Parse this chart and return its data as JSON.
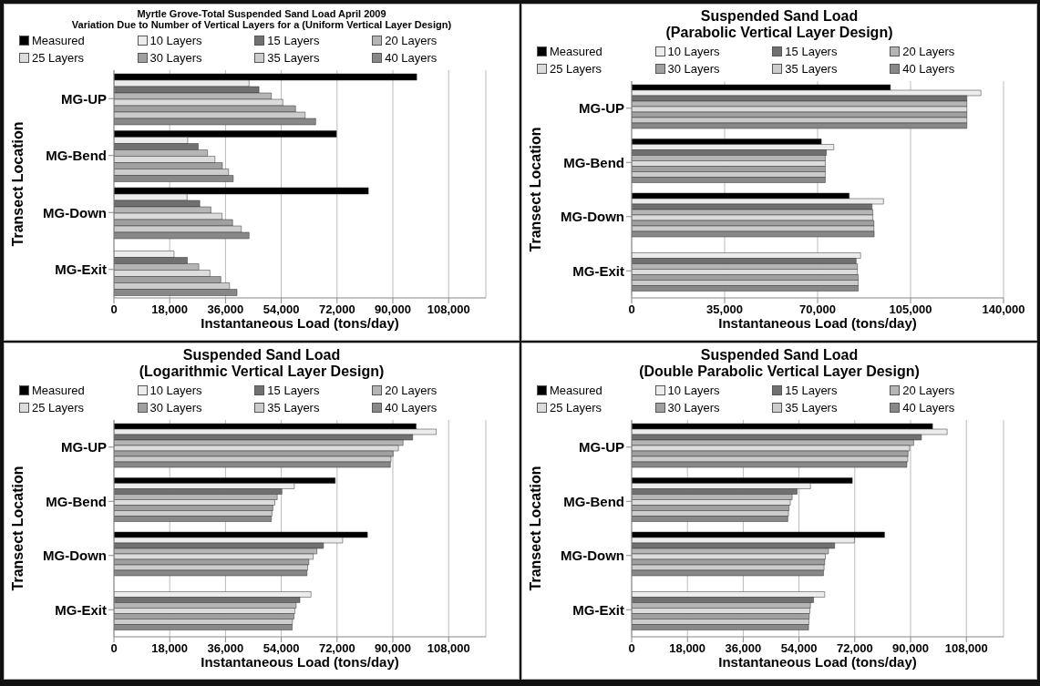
{
  "chart_data": [
    {
      "type": "bar",
      "orientation": "horizontal",
      "title": "Myrtle Grove-Total Suspended Sand Load April 2009",
      "subtitle": "Variation Due to Number of Vertical Layers for a (Uniform Vertical Layer Design)",
      "xlabel": "Instantaneous Load (tons/day)",
      "ylabel": "Transect Location",
      "categories": [
        "MG-UP",
        "MG-Bend",
        "MG-Down",
        "MG-Exit"
      ],
      "xlim": [
        0,
        120000
      ],
      "xticks": [
        {
          "value": 0,
          "label": "0"
        },
        {
          "value": 18000,
          "label": "18,000"
        },
        {
          "value": 36000,
          "label": "36,000"
        },
        {
          "value": 54000,
          "label": "54,000"
        },
        {
          "value": 72000,
          "label": "72,000"
        },
        {
          "value": 90000,
          "label": "90,000"
        },
        {
          "value": 108000,
          "label": "108,000"
        }
      ],
      "grid": "x",
      "legend": "top",
      "series": [
        {
          "name": "Measured",
          "color": "#000000",
          "values": [
            97700,
            71800,
            82100,
            null
          ]
        },
        {
          "name": "10 Layers",
          "color": "#ececec",
          "values": [
            43600,
            23800,
            23600,
            19400
          ]
        },
        {
          "name": "15 Layers",
          "color": "#707070",
          "values": [
            46800,
            27200,
            27700,
            23700
          ]
        },
        {
          "name": "20 Layers",
          "color": "#b5b5b5",
          "values": [
            50800,
            30200,
            31300,
            27400
          ]
        },
        {
          "name": "25 Layers",
          "color": "#dcdcdc",
          "values": [
            54500,
            32600,
            34900,
            31000
          ]
        },
        {
          "name": "30 Layers",
          "color": "#a0a0a0",
          "values": [
            58600,
            35000,
            38300,
            34500
          ]
        },
        {
          "name": "35 Layers",
          "color": "#cccccc",
          "values": [
            61700,
            37000,
            41100,
            37300
          ]
        },
        {
          "name": "40 Layers",
          "color": "#888888",
          "values": [
            65100,
            38500,
            43600,
            39700
          ]
        }
      ]
    },
    {
      "type": "bar",
      "orientation": "horizontal",
      "title": "Suspended Sand Load",
      "subtitle": "(Parabolic Vertical Layer Design)",
      "xlabel": "Instantaneous Load (tons/day)",
      "ylabel": "Transect Location",
      "categories": [
        "MG-UP",
        "MG-Bend",
        "MG-Down",
        "MG-Exit"
      ],
      "xlim": [
        0,
        140000
      ],
      "xticks": [
        {
          "value": 0,
          "label": "0"
        },
        {
          "value": 35000,
          "label": "35,000"
        },
        {
          "value": 70000,
          "label": "70,000"
        },
        {
          "value": 105000,
          "label": "105,000"
        },
        {
          "value": 140000,
          "label": "140,000"
        }
      ],
      "grid": "x",
      "legend": "top",
      "series": [
        {
          "name": "Measured",
          "color": "#000000",
          "values": [
            97400,
            71400,
            81900,
            null
          ]
        },
        {
          "name": "10 Layers",
          "color": "#ececec",
          "values": [
            131500,
            76100,
            94800,
            86200
          ]
        },
        {
          "name": "15 Layers",
          "color": "#707070",
          "values": [
            126200,
            73300,
            90500,
            84500
          ]
        },
        {
          "name": "20 Layers",
          "color": "#b5b5b5",
          "values": [
            126200,
            72900,
            90800,
            85000
          ]
        },
        {
          "name": "25 Layers",
          "color": "#dcdcdc",
          "values": [
            126200,
            72900,
            90800,
            85000
          ]
        },
        {
          "name": "30 Layers",
          "color": "#a0a0a0",
          "values": [
            126200,
            72900,
            91200,
            85300
          ]
        },
        {
          "name": "35 Layers",
          "color": "#cccccc",
          "values": [
            126200,
            72900,
            91200,
            85300
          ]
        },
        {
          "name": "40 Layers",
          "color": "#888888",
          "values": [
            126200,
            72900,
            91300,
            85300
          ]
        }
      ]
    },
    {
      "type": "bar",
      "orientation": "horizontal",
      "title": "Suspended Sand Load",
      "subtitle": "(Logarithmic Vertical Layer Design)",
      "xlabel": "Instantaneous Load (tons/day)",
      "ylabel": "Transect Location",
      "categories": [
        "MG-UP",
        "MG-Bend",
        "MG-Down",
        "MG-Exit"
      ],
      "xlim": [
        0,
        120000
      ],
      "xticks": [
        {
          "value": 0,
          "label": "0"
        },
        {
          "value": 18000,
          "label": "18,000"
        },
        {
          "value": 36000,
          "label": "36,000"
        },
        {
          "value": 54000,
          "label": "54,000"
        },
        {
          "value": 72000,
          "label": "72,000"
        },
        {
          "value": 90000,
          "label": "90,000"
        },
        {
          "value": 108000,
          "label": "108,000"
        }
      ],
      "grid": "x",
      "legend": "top",
      "series": [
        {
          "name": "Measured",
          "color": "#000000",
          "values": [
            97500,
            71400,
            81800,
            null
          ]
        },
        {
          "name": "10 Layers",
          "color": "#ececec",
          "values": [
            104000,
            58200,
            73800,
            63600
          ]
        },
        {
          "name": "15 Layers",
          "color": "#707070",
          "values": [
            96400,
            54200,
            67600,
            60000
          ]
        },
        {
          "name": "20 Layers",
          "color": "#b5b5b5",
          "values": [
            93300,
            52700,
            65500,
            58800
          ]
        },
        {
          "name": "25 Layers",
          "color": "#dcdcdc",
          "values": [
            91800,
            51900,
            64300,
            58400
          ]
        },
        {
          "name": "30 Layers",
          "color": "#a0a0a0",
          "values": [
            90100,
            51300,
            62900,
            58100
          ]
        },
        {
          "name": "35 Layers",
          "color": "#cccccc",
          "values": [
            89400,
            51000,
            62500,
            57600
          ]
        },
        {
          "name": "40 Layers",
          "color": "#888888",
          "values": [
            89200,
            50800,
            62300,
            57500
          ]
        }
      ]
    },
    {
      "type": "bar",
      "orientation": "horizontal",
      "title": "Suspended Sand Load",
      "subtitle": "(Double Parabolic Vertical Layer Design)",
      "xlabel": "Instantaneous Load (tons/day)",
      "ylabel": "Transect Location",
      "categories": [
        "MG-UP",
        "MG-Bend",
        "MG-Down",
        "MG-Exit"
      ],
      "xlim": [
        0,
        120000
      ],
      "xticks": [
        {
          "value": 0,
          "label": "0"
        },
        {
          "value": 18000,
          "label": "18,000"
        },
        {
          "value": 36000,
          "label": "36,000"
        },
        {
          "value": 54000,
          "label": "54,000"
        },
        {
          "value": 72000,
          "label": "72,000"
        },
        {
          "value": 90000,
          "label": "90,000"
        },
        {
          "value": 108000,
          "label": "108,000"
        }
      ],
      "grid": "x",
      "legend": "top",
      "series": [
        {
          "name": "Measured",
          "color": "#000000",
          "values": [
            97100,
            71200,
            81600,
            null
          ]
        },
        {
          "name": "10 Layers",
          "color": "#ececec",
          "values": [
            101800,
            57700,
            71900,
            62300
          ]
        },
        {
          "name": "15 Layers",
          "color": "#707070",
          "values": [
            93500,
            53400,
            65500,
            58700
          ]
        },
        {
          "name": "20 Layers",
          "color": "#b5b5b5",
          "values": [
            91000,
            51800,
            63500,
            57700
          ]
        },
        {
          "name": "25 Layers",
          "color": "#dcdcdc",
          "values": [
            89700,
            51200,
            62500,
            57500
          ]
        },
        {
          "name": "30 Layers",
          "color": "#a0a0a0",
          "values": [
            89200,
            50800,
            62300,
            57300
          ]
        },
        {
          "name": "35 Layers",
          "color": "#cccccc",
          "values": [
            89100,
            50600,
            62100,
            57200
          ]
        },
        {
          "name": "40 Layers",
          "color": "#888888",
          "values": [
            88800,
            50400,
            61900,
            57100
          ]
        }
      ]
    }
  ]
}
